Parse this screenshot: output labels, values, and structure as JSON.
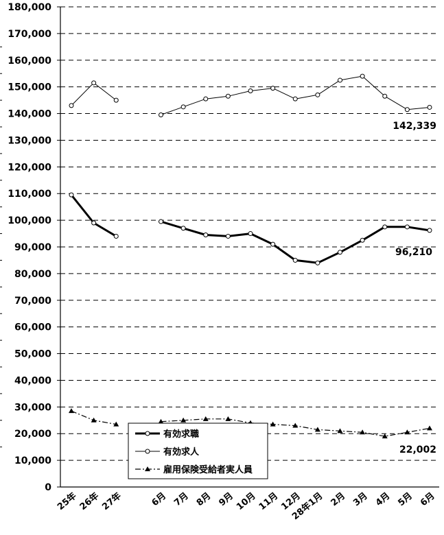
{
  "chart_data": {
    "type": "line",
    "categories": [
      "25年",
      "26年",
      "27年",
      "",
      "6月",
      "7月",
      "8月",
      "9月",
      "10月",
      "11月",
      "12月",
      "28年1月",
      "2月",
      "3月",
      "4月",
      "5月",
      "6月"
    ],
    "ylim": [
      0,
      180000
    ],
    "yticks": [
      "0",
      "10,000",
      "20,000",
      "30,000",
      "40,000",
      "50,000",
      "60,000",
      "70,000",
      "80,000",
      "90,000",
      "100,000",
      "110,000",
      "120,000",
      "130,000",
      "140,000",
      "150,000",
      "160,000",
      "170,000",
      "180,000"
    ],
    "grid": "horizontal-dashed",
    "legend_position": "bottom-left",
    "series": [
      {
        "name": "有効求職",
        "color": "#000000",
        "values": [
          109500,
          99000,
          94000,
          null,
          99500,
          97000,
          94500,
          94000,
          95000,
          91000,
          85000,
          84000,
          88000,
          92500,
          97500,
          97500,
          96210
        ]
      },
      {
        "name": "有効求人",
        "color": "#000000",
        "values": [
          143000,
          151500,
          145000,
          null,
          139500,
          142500,
          145500,
          146500,
          148500,
          149500,
          145500,
          147000,
          152500,
          154000,
          146500,
          141500,
          142339
        ]
      },
      {
        "name": "雇用保険受給者実人員",
        "color": "#000000",
        "values": [
          28500,
          25000,
          23500,
          null,
          24500,
          25000,
          25500,
          25500,
          24000,
          23500,
          23000,
          21500,
          21000,
          20500,
          19000,
          20500,
          22002
        ]
      }
    ],
    "annotations": [
      "142,339",
      "96,210",
      "22,002"
    ]
  }
}
